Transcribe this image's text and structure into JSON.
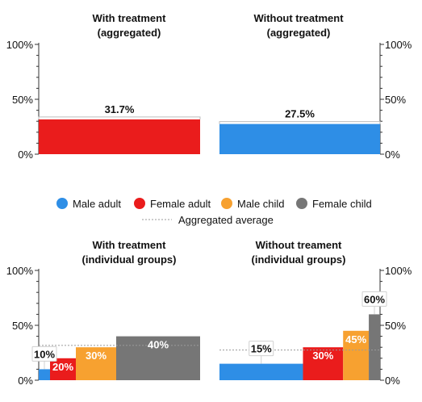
{
  "colors": {
    "male_adult": "#2e8ee6",
    "female_adult": "#ea1c1c",
    "male_child": "#f7a130",
    "female_child": "#767676"
  },
  "legend": {
    "male_adult": "Male adult",
    "female_adult": "Female adult",
    "male_child": "Male child",
    "female_child": "Female child",
    "aggregated_average": "Aggregated average"
  },
  "chart_data": [
    {
      "type": "bar",
      "title": "With treatment\n(aggregated)",
      "title_lines": [
        "With treatment",
        "(aggregated)"
      ],
      "ylim": [
        0,
        100
      ],
      "yticks": [
        "0%",
        "50%",
        "100%"
      ],
      "axis_side": "left",
      "bars": [
        {
          "label": "31.7%",
          "value": 31.7,
          "color_key": "female_adult"
        }
      ],
      "average": 31.7
    },
    {
      "type": "bar",
      "title": "Without treatment\n(aggregated)",
      "title_lines": [
        "Without treatment",
        "(aggregated)"
      ],
      "ylim": [
        0,
        100
      ],
      "yticks": [
        "0%",
        "50%",
        "100%"
      ],
      "axis_side": "right",
      "bars": [
        {
          "label": "27.5%",
          "value": 27.5,
          "color_key": "male_adult"
        }
      ],
      "average": 27.5
    },
    {
      "type": "bar",
      "title": "With treatment\n(individual groups)",
      "title_lines": [
        "With treatment",
        "(individual groups)"
      ],
      "ylim": [
        0,
        100
      ],
      "yticks": [
        "0%",
        "50%",
        "100%"
      ],
      "axis_side": "left",
      "bars": [
        {
          "label": "10%",
          "value": 10,
          "share": 0.07,
          "color_key": "male_adult"
        },
        {
          "label": "20%",
          "value": 20,
          "share": 0.16,
          "color_key": "female_adult"
        },
        {
          "label": "30%",
          "value": 30,
          "share": 0.25,
          "color_key": "male_child"
        },
        {
          "label": "40%",
          "value": 40,
          "share": 0.52,
          "color_key": "female_child"
        }
      ],
      "average": 31.7
    },
    {
      "type": "bar",
      "title": "Without treament\n(individual groups)",
      "title_lines": [
        "Without treament",
        "(individual groups)"
      ],
      "ylim": [
        0,
        100
      ],
      "yticks": [
        "0%",
        "50%",
        "100%"
      ],
      "axis_side": "right",
      "bars": [
        {
          "label": "15%",
          "value": 15,
          "share": 0.52,
          "color_key": "male_adult"
        },
        {
          "label": "30%",
          "value": 30,
          "share": 0.25,
          "color_key": "female_adult"
        },
        {
          "label": "45%",
          "value": 45,
          "share": 0.16,
          "color_key": "male_child"
        },
        {
          "label": "60%",
          "value": 60,
          "share": 0.07,
          "color_key": "female_child"
        }
      ],
      "average": 27.5
    }
  ]
}
